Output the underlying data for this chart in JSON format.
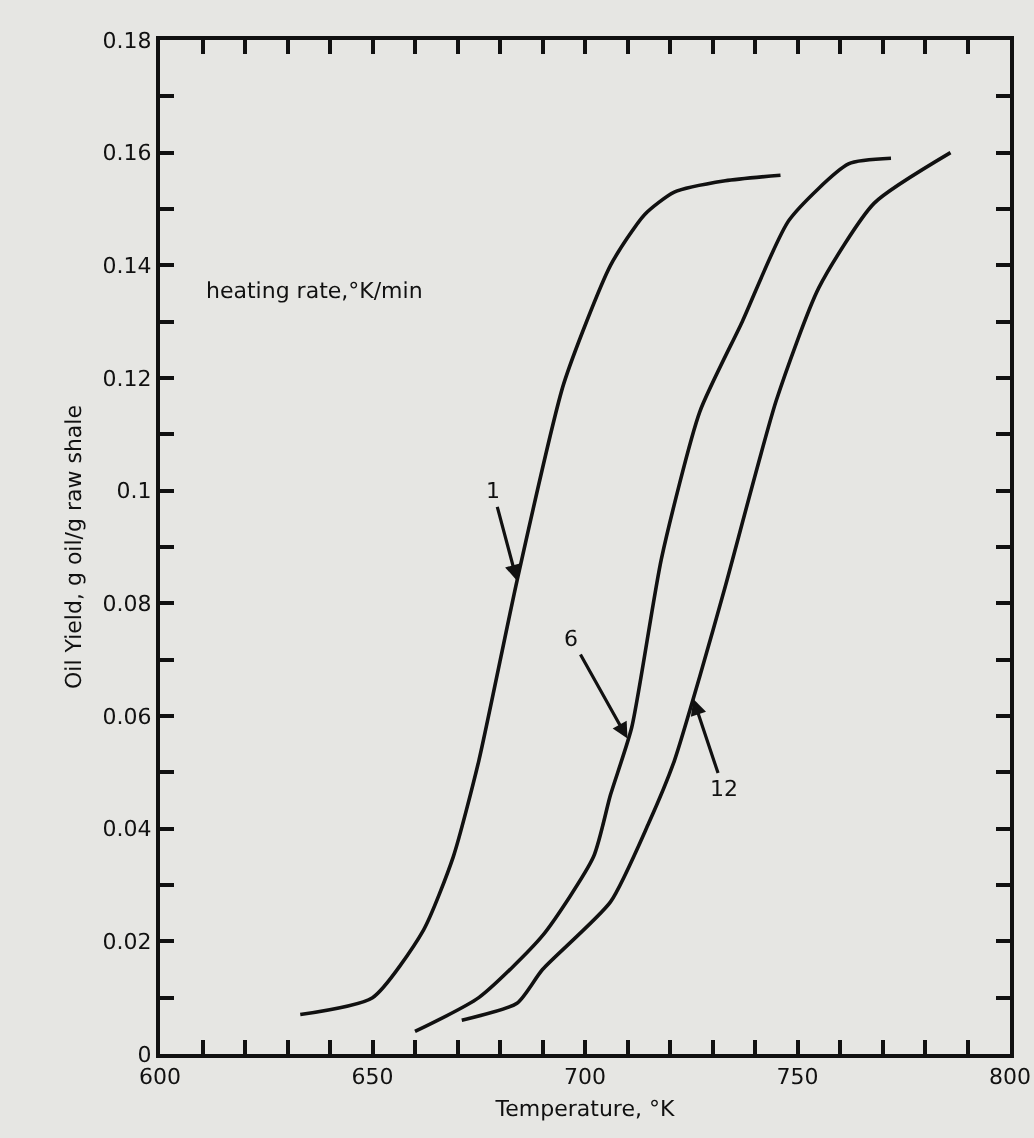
{
  "chart_data": {
    "type": "line",
    "xlabel": "Temperature, °K",
    "ylabel": "Oil Yield, g oil/g raw shale",
    "xlim": [
      600,
      800
    ],
    "ylim": [
      0,
      0.18
    ],
    "xticks": [
      600,
      {
        "value": 610,
        "label": null
      },
      {
        "value": 620,
        "label": null
      },
      {
        "value": 630,
        "label": null
      },
      {
        "value": 640,
        "label": null
      },
      650,
      {
        "value": 660,
        "label": null
      },
      {
        "value": 670,
        "label": null
      },
      {
        "value": 680,
        "label": null
      },
      {
        "value": 690,
        "label": null
      },
      700,
      {
        "value": 710,
        "label": null
      },
      {
        "value": 720,
        "label": null
      },
      {
        "value": 730,
        "label": null
      },
      {
        "value": 740,
        "label": null
      },
      750,
      {
        "value": 760,
        "label": null
      },
      {
        "value": 770,
        "label": null
      },
      {
        "value": 780,
        "label": null
      },
      {
        "value": 790,
        "label": null
      },
      800
    ],
    "yticks": [
      0,
      {
        "value": 0.01,
        "label": null
      },
      0.02,
      {
        "value": 0.03,
        "label": null
      },
      0.04,
      {
        "value": 0.05,
        "label": null
      },
      0.06,
      {
        "value": 0.07,
        "label": null
      },
      0.08,
      {
        "value": 0.09,
        "label": null
      },
      0.1,
      {
        "value": 0.11,
        "label": null
      },
      0.12,
      {
        "value": 0.13,
        "label": null
      },
      0.14,
      {
        "value": 0.15,
        "label": null
      },
      0.16,
      {
        "value": 0.17,
        "label": null
      },
      0.18
    ],
    "grid": false,
    "marker": "none",
    "line_style": "solid",
    "series": [
      {
        "color": "#111111",
        "x": [
          633,
          650,
          662,
          669,
          675,
          684,
          695,
          706,
          714,
          721,
          733,
          746
        ],
        "values": [
          0.007,
          0.01,
          0.022,
          0.035,
          0.052,
          0.084,
          0.119,
          0.14,
          0.149,
          0.153,
          0.155,
          0.156
        ]
      },
      {
        "color": "#111111",
        "x": [
          660,
          675,
          690,
          702,
          706,
          711,
          718,
          727,
          737,
          748,
          762,
          772
        ],
        "values": [
          0.004,
          0.01,
          0.021,
          0.035,
          0.046,
          0.058,
          0.088,
          0.114,
          0.13,
          0.148,
          0.158,
          0.159
        ]
      },
      {
        "color": "#111111",
        "x": [
          671,
          684,
          690,
          706,
          715,
          721,
          727,
          733,
          745,
          755,
          768,
          786
        ],
        "values": [
          0.006,
          0.009,
          0.015,
          0.027,
          0.041,
          0.052,
          0.067,
          0.083,
          0.116,
          0.136,
          0.151,
          0.16
        ]
      }
    ],
    "annotations": [
      "heating rate,°K/min",
      {
        "text": "1",
        "x": 684,
        "y": 0.084
      },
      {
        "text": "6",
        "x": 710,
        "y": 0.056
      },
      {
        "text": "12",
        "x": 725.5,
        "y": 0.063
      }
    ]
  }
}
